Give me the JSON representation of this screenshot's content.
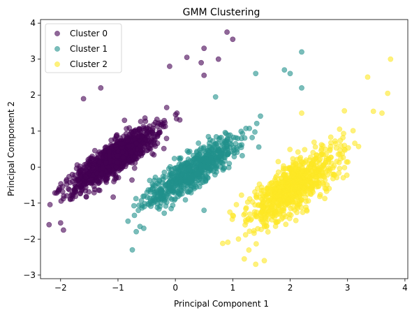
{
  "chart_data": {
    "type": "scatter",
    "title": "GMM Clustering",
    "xlabel": "Principal Component 1",
    "ylabel": "Principal Component 2",
    "xlim": [
      -2.35,
      4.05
    ],
    "ylim": [
      -3.1,
      4.1
    ],
    "xticks": [
      -2,
      -1,
      0,
      1,
      2,
      3,
      4
    ],
    "yticks": [
      -3,
      -2,
      -1,
      0,
      1,
      2,
      3,
      4
    ],
    "grid": false,
    "legend_position": "top-left",
    "point_alpha": 0.6,
    "series": [
      {
        "name": "Cluster 0",
        "color": "#440154",
        "center": [
          -1.05,
          0.25
        ],
        "sigma_major": 0.55,
        "sigma_minor": 0.16,
        "angle_deg": 50,
        "count": 1100,
        "outliers": [
          [
            0.9,
            3.75
          ],
          [
            1.0,
            3.55
          ],
          [
            0.5,
            3.3
          ],
          [
            0.45,
            2.9
          ],
          [
            0.75,
            3.0
          ],
          [
            0.2,
            3.05
          ],
          [
            0.5,
            2.55
          ],
          [
            -0.1,
            2.8
          ],
          [
            -1.3,
            2.2
          ],
          [
            -1.6,
            1.9
          ],
          [
            -2.0,
            -1.55
          ],
          [
            -2.2,
            -1.6
          ],
          [
            -1.95,
            -1.75
          ]
        ]
      },
      {
        "name": "Cluster 1",
        "color": "#21918c",
        "center": [
          0.3,
          -0.1
        ],
        "sigma_major": 0.6,
        "sigma_minor": 0.16,
        "angle_deg": 50,
        "count": 700,
        "outliers": [
          [
            2.2,
            3.2
          ],
          [
            1.9,
            2.7
          ],
          [
            2.0,
            2.6
          ],
          [
            1.4,
            2.6
          ],
          [
            2.2,
            2.2
          ],
          [
            0.7,
            1.95
          ],
          [
            -0.75,
            -2.3
          ],
          [
            -0.55,
            -1.7
          ],
          [
            -0.35,
            -0.95
          ],
          [
            0.5,
            -1.2
          ]
        ]
      },
      {
        "name": "Cluster 2",
        "color": "#fde725",
        "center": [
          2.05,
          -0.55
        ],
        "sigma_major": 0.62,
        "sigma_minor": 0.22,
        "angle_deg": 55,
        "count": 800,
        "outliers": [
          [
            3.75,
            3.0
          ],
          [
            3.35,
            2.5
          ],
          [
            3.7,
            2.05
          ],
          [
            3.45,
            1.55
          ],
          [
            3.6,
            1.5
          ],
          [
            2.2,
            1.5
          ],
          [
            1.55,
            -2.6
          ],
          [
            1.4,
            -2.7
          ],
          [
            1.2,
            -2.55
          ],
          [
            1.1,
            -2.0
          ],
          [
            0.95,
            -1.25
          ]
        ]
      }
    ]
  }
}
